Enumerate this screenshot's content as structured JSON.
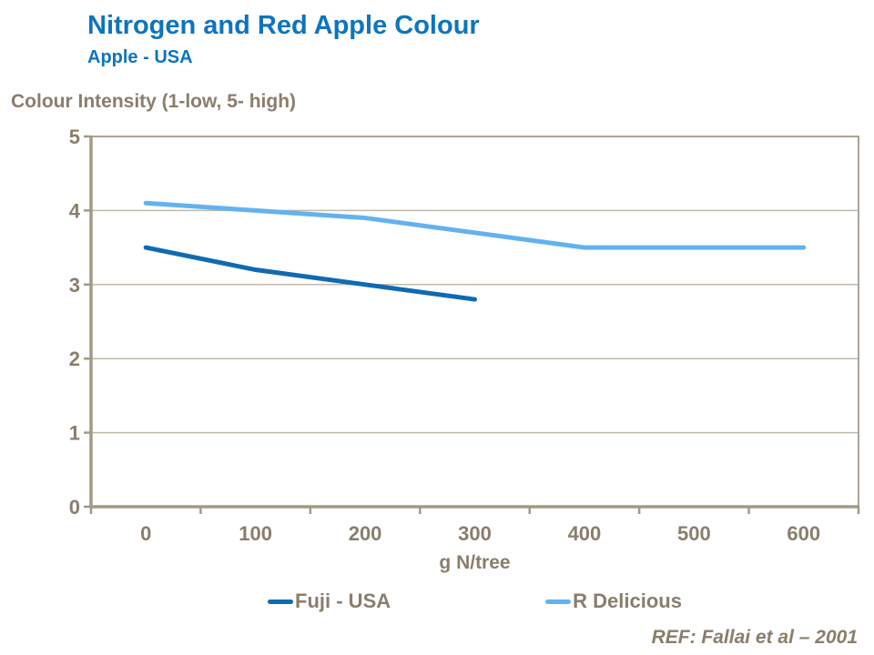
{
  "header": {
    "title": "Nitrogen and Red Apple Colour",
    "subtitle": "Apple - USA"
  },
  "chart_data": {
    "type": "line",
    "categories": [
      0,
      100,
      200,
      300,
      400,
      500,
      600
    ],
    "series": [
      {
        "name": "Fuji - USA",
        "color": "#0F6AB2",
        "values": [
          3.5,
          3.2,
          3.0,
          2.8,
          null,
          null,
          null
        ]
      },
      {
        "name": "R Delicious",
        "color": "#63B2F0",
        "values": [
          4.1,
          4.0,
          3.9,
          3.7,
          3.5,
          3.5,
          3.5
        ]
      }
    ],
    "ylabel": "Colour Intensity (1-low, 5- high)",
    "xlabel": "g N/tree",
    "ylim": [
      0,
      5
    ],
    "yticks": [
      0,
      1,
      2,
      3,
      4,
      5
    ],
    "grid": "horizontal",
    "legend_position": "bottom"
  },
  "footer": {
    "ref": "REF: Fallai et al – 2001"
  },
  "colors": {
    "title_blue": "#0E74BE",
    "text_taupe": "#8B7D6B",
    "axis": "#A49986",
    "grid": "#C3B9AD",
    "plot_border": "#AFA394"
  }
}
